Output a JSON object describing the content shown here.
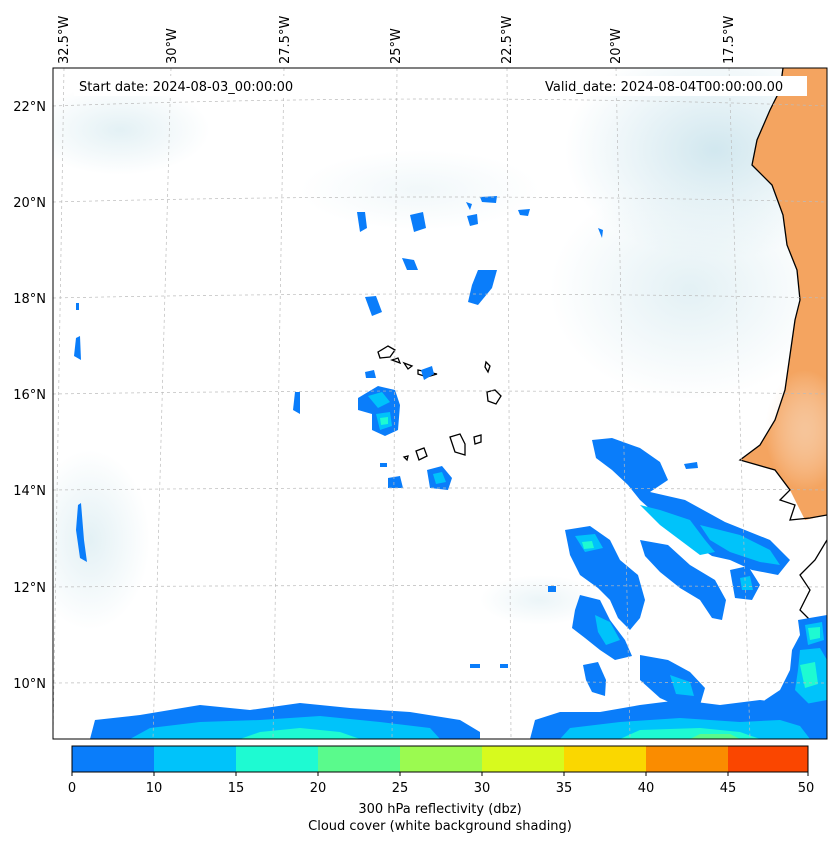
{
  "header": {
    "start_date": "Start date: 2024-08-03_00:00:00",
    "valid_date": "Valid_date: 2024-08-04T00:00:00.00"
  },
  "axes": {
    "longitude_labels": [
      "32.5°W",
      "30°W",
      "27.5°W",
      "25°W",
      "22.5°W",
      "20°W",
      "17.5°W"
    ],
    "latitude_labels": [
      "22°N",
      "20°N",
      "18°N",
      "16°N",
      "14°N",
      "12°N",
      "10°N"
    ],
    "gridlines": true
  },
  "colorbar": {
    "ticks": [
      "0",
      "10",
      "15",
      "20",
      "25",
      "30",
      "35",
      "40",
      "45",
      "50"
    ],
    "colors": [
      "#0a7dfa",
      "#00c3fa",
      "#1efad2",
      "#5afa8c",
      "#9bfa50",
      "#d7fa1e",
      "#fad700",
      "#fa8c00",
      "#fa4600"
    ],
    "title_line1": "300 hPa reflectivity (dbz)",
    "title_line2": "Cloud cover (white background shading)"
  },
  "colors": {
    "land": "#f4a460",
    "coastline": "#000000",
    "reflectivity_base": "#0a7dfa",
    "reflectivity_mid": "#00c3fa",
    "reflectivity_high": "#1efad2",
    "reflectivity_peak": "#5afa8c",
    "cloud_cover": "#cfe6ee"
  }
}
